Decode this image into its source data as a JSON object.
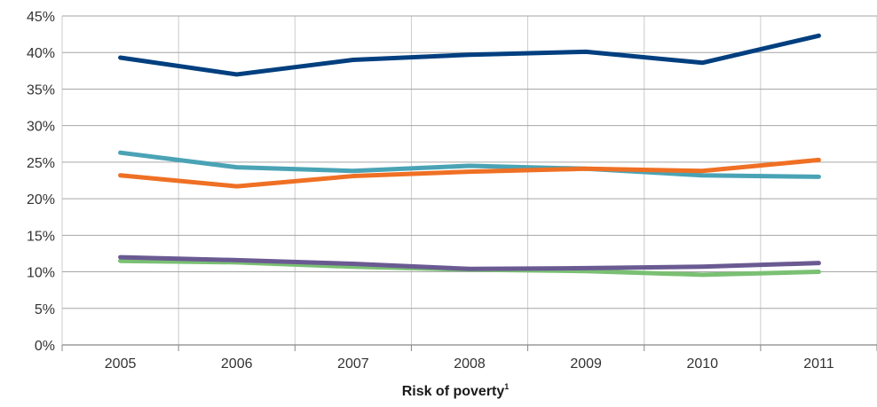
{
  "chart_data": {
    "type": "line",
    "title": "",
    "xlabel": "Risk of poverty",
    "xlabel_superscript": "1",
    "ylabel": "",
    "categories": [
      "2005",
      "2006",
      "2007",
      "2008",
      "2009",
      "2010",
      "2011"
    ],
    "ylim": [
      0,
      45
    ],
    "y_ticks": [
      0,
      5,
      10,
      15,
      20,
      25,
      30,
      35,
      40,
      45
    ],
    "y_tick_labels": [
      "0%",
      "5%",
      "10%",
      "15%",
      "20%",
      "25%",
      "30%",
      "35%",
      "40%",
      "45%"
    ],
    "grid": {
      "horizontal": true,
      "vertical": true
    },
    "legend": "none",
    "series": [
      {
        "color": "#003f7f",
        "values": [
          39.3,
          37.0,
          39.0,
          39.7,
          40.1,
          38.6,
          42.3
        ]
      },
      {
        "color": "#4aa3b5",
        "values": [
          26.3,
          24.3,
          23.8,
          24.5,
          24.1,
          23.2,
          23.0
        ]
      },
      {
        "color": "#ef7024",
        "values": [
          23.2,
          21.7,
          23.1,
          23.7,
          24.1,
          23.8,
          25.3
        ]
      },
      {
        "color": "#7ac073",
        "values": [
          11.5,
          11.3,
          10.7,
          10.3,
          10.1,
          9.6,
          10.0
        ]
      },
      {
        "color": "#6a5a92",
        "values": [
          12.0,
          11.6,
          11.1,
          10.4,
          10.5,
          10.7,
          11.2
        ]
      }
    ]
  }
}
